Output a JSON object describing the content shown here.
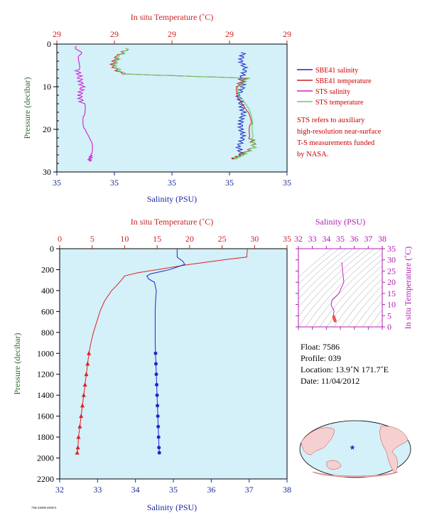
{
  "chart_data": [
    {
      "type": "line",
      "panel": "top-near-surface",
      "title": "",
      "x_top_label": "In situ Temperature (˚C)",
      "x_top_ticks": [
        "29",
        "29",
        "29",
        "29",
        "29"
      ],
      "x_bottom_label": "Salinity (PSU)",
      "x_bottom_ticks": [
        "35",
        "35",
        "35",
        "35",
        "35"
      ],
      "ylabel": "Pressure (decibar)",
      "y_ticks": [
        "0",
        "10",
        "20",
        "30"
      ],
      "ylim": [
        30,
        0
      ],
      "series": [
        {
          "name": "SBE41 salinity",
          "color": "#1a2acc",
          "x_frac": [
            0.81,
            0.8,
            0.82,
            0.8,
            0.81,
            0.79,
            0.8,
            0.81,
            0.8,
            0.8,
            0.81,
            0.79,
            0.8
          ],
          "pressure": [
            2,
            4,
            6,
            8,
            10,
            12,
            14,
            16,
            18,
            20,
            22,
            24,
            26
          ]
        },
        {
          "name": "SBE41 temperature",
          "color": "#cc2222",
          "x_frac": [
            0.31,
            0.26,
            0.24,
            0.28,
            0.82,
            0.78,
            0.8,
            0.82,
            0.85,
            0.84,
            0.86,
            0.8,
            0.76
          ],
          "pressure": [
            1,
            3,
            5,
            7,
            8,
            10,
            13,
            16,
            19,
            22,
            24,
            26,
            27
          ]
        },
        {
          "name": "STS salinity",
          "color": "#d020d0",
          "x_frac": [
            0.09,
            0.1,
            0.09,
            0.1,
            0.11,
            0.1,
            0.11,
            0.12,
            0.13,
            0.14,
            0.15,
            0.14
          ],
          "pressure": [
            0.5,
            3,
            6,
            8,
            10,
            12,
            14,
            17,
            20,
            23,
            26,
            27.5
          ]
        },
        {
          "name": "STS temperature",
          "color": "#66cc66",
          "x_frac": [
            0.31,
            0.27,
            0.25,
            0.29,
            0.83,
            0.79,
            0.81,
            0.83,
            0.86,
            0.85,
            0.86,
            0.81,
            0.77
          ],
          "pressure": [
            1,
            3,
            5,
            7,
            8,
            10,
            13,
            16,
            19,
            22,
            24,
            26,
            27
          ]
        }
      ],
      "legend": [
        "SBE41 salinity",
        "SBE41 temperature",
        "STS salinity",
        "STS temperature"
      ],
      "legend_placement": "right"
    },
    {
      "type": "line",
      "panel": "bottom-full-profile",
      "title": "",
      "x_top_label": "In situ Temperature (˚C)",
      "x_top_ticks": [
        "0",
        "5",
        "10",
        "15",
        "20",
        "25",
        "30",
        "35"
      ],
      "temp_range": [
        0,
        35
      ],
      "x_bottom_label": "Salinity (PSU)",
      "x_bottom_ticks": [
        "32",
        "33",
        "34",
        "35",
        "36",
        "37",
        "38"
      ],
      "sal_range": [
        32,
        38
      ],
      "ylabel": "Pressure (decibar)",
      "y_ticks": [
        "0",
        "200",
        "400",
        "600",
        "800",
        "1000",
        "1200",
        "1400",
        "1600",
        "1800",
        "2000",
        "2200"
      ],
      "ylim": [
        2200,
        0
      ],
      "series": [
        {
          "name": "Temperature",
          "color": "#dd2222",
          "pressure": [
            0,
            80,
            100,
            150,
            200,
            230,
            260,
            300,
            350,
            400,
            500,
            600,
            700,
            800,
            900,
            1000,
            1100,
            1200,
            1300,
            1400,
            1500,
            1600,
            1700,
            1800,
            1900,
            1950
          ],
          "values": [
            28.9,
            28.8,
            26,
            20,
            15,
            12,
            10,
            9.5,
            8.8,
            8,
            6.9,
            6.2,
            5.7,
            5.2,
            4.8,
            4.5,
            4.3,
            4.1,
            3.9,
            3.7,
            3.5,
            3.3,
            3.1,
            2.9,
            2.8,
            2.7
          ]
        },
        {
          "name": "Salinity",
          "color": "#1a2acc",
          "pressure": [
            0,
            80,
            120,
            150,
            200,
            240,
            260,
            290,
            320,
            400,
            500,
            600,
            700,
            800,
            900,
            1000,
            1100,
            1200,
            1300,
            1400,
            1500,
            1600,
            1700,
            1800,
            1900,
            1950
          ],
          "values": [
            35.1,
            35.1,
            35.25,
            35.3,
            34.9,
            34.4,
            34.3,
            34.35,
            34.5,
            34.55,
            34.53,
            34.52,
            34.52,
            34.52,
            34.52,
            34.53,
            34.54,
            34.55,
            34.56,
            34.57,
            34.58,
            34.59,
            34.6,
            34.61,
            34.62,
            34.63
          ]
        }
      ],
      "marker_from_pressure": 1000
    },
    {
      "type": "scatter",
      "panel": "ts-diagram",
      "x_top_label": "Salinity (PSU)",
      "x_ticks": [
        "32",
        "33",
        "34",
        "35",
        "36",
        "37",
        "38"
      ],
      "xlim": [
        32,
        38
      ],
      "y_label": "In situ Temperature (˚C)",
      "y_ticks": [
        "0",
        "5",
        "10",
        "15",
        "20",
        "25",
        "30",
        "35"
      ],
      "ylim": [
        0,
        35
      ],
      "salinity": [
        35.1,
        35.25,
        34.9,
        34.4,
        34.35,
        34.5,
        34.55,
        34.52,
        34.52,
        34.53,
        34.55,
        34.57,
        34.59,
        34.61,
        34.63
      ],
      "temperature": [
        28.9,
        20,
        15,
        12,
        9.5,
        8,
        6.9,
        6.2,
        5.2,
        4.5,
        4.1,
        3.7,
        3.3,
        2.9,
        2.7
      ]
    }
  ],
  "legend_note": {
    "lines": [
      "STS refers to auxiliary",
      "high-resolution near-surface",
      "T-S measurements funded",
      "by NASA."
    ]
  },
  "float_info": {
    "float": "Float:  7586",
    "profile": "Profile:  039",
    "location": "Location:  13.9˚N  171.7˚E",
    "date": "Date:  11/04/2012"
  },
  "footer_note": "7586 038898 f096874",
  "colors": {
    "plot_bg": "#d4f0f8",
    "red": "#cc2222",
    "blue": "#1a2a9a",
    "magenta": "#b01cb0",
    "green_label": "#2d6b2d"
  }
}
